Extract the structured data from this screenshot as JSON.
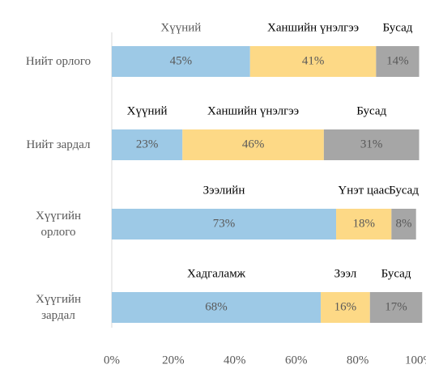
{
  "chart_data": {
    "type": "stacked_bar",
    "categories": [
      "Нийт орлого",
      "Нийт зардал",
      "Хүүгийн орлого",
      "Хүүгийн зардал"
    ],
    "series": [
      {
        "color": "#9dc9e6",
        "labels": [
          "Хүүний",
          "Хүүний",
          "Зээлийн",
          "Хадгаламж"
        ],
        "values": [
          45,
          23,
          73,
          68
        ],
        "value_labels": [
          "45%",
          "23%",
          "73%",
          "68%"
        ]
      },
      {
        "color": "#fdd986",
        "labels": [
          "Ханшийн үнэлгээ",
          "Ханшийн үнэлгээ",
          "Үнэт цаас",
          "Зээл"
        ],
        "values": [
          41,
          46,
          18,
          16
        ],
        "value_labels": [
          "41%",
          "46%",
          "18%",
          "16%"
        ]
      },
      {
        "color": "#a6a6a6",
        "labels": [
          "Бусад",
          "Бусад",
          "Бусад",
          "Бусад"
        ],
        "values": [
          14,
          31,
          8,
          17
        ],
        "value_labels": [
          "14%",
          "31%",
          "8%",
          "17%"
        ]
      }
    ],
    "xlim": [
      0,
      100
    ],
    "xticks": [
      {
        "value": 0,
        "label": "0%"
      },
      {
        "value": 20,
        "label": "20%"
      },
      {
        "value": 40,
        "label": "40%"
      },
      {
        "value": 60,
        "label": "60%"
      },
      {
        "value": 80,
        "label": "80%"
      },
      {
        "value": 100,
        "label": "100%"
      }
    ]
  }
}
